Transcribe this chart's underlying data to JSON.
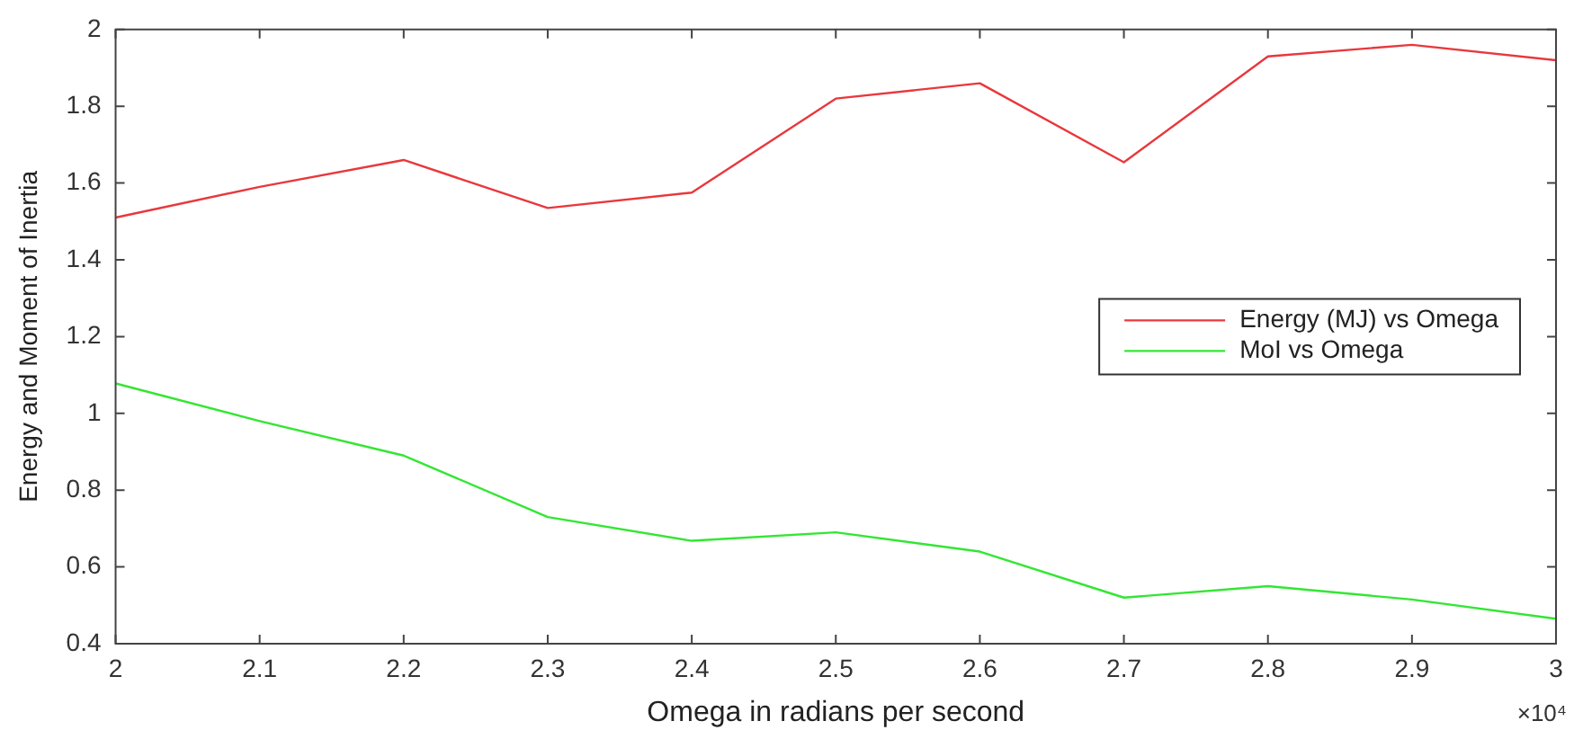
{
  "chart_data": {
    "type": "line",
    "xlabel": "Omega in radians per second",
    "ylabel": "Energy and Moment of Inertia",
    "x": [
      2,
      2.1,
      2.2,
      2.3,
      2.4,
      2.5,
      2.6,
      2.7,
      2.8,
      2.9,
      3
    ],
    "series": [
      {
        "name": "Energy (MJ) vs Omega",
        "color": "#e8383d",
        "values": [
          1.51,
          1.59,
          1.66,
          1.535,
          1.575,
          1.82,
          1.86,
          1.654,
          1.93,
          1.96,
          1.92
        ]
      },
      {
        "name": "MoI vs Omega",
        "color": "#33e633",
        "values": [
          1.078,
          0.98,
          0.89,
          0.73,
          0.668,
          0.69,
          0.64,
          0.52,
          0.55,
          0.515,
          0.465
        ]
      }
    ],
    "xlim": [
      2,
      3
    ],
    "xticks": [
      2,
      2.1,
      2.2,
      2.3,
      2.4,
      2.5,
      2.6,
      2.7,
      2.8,
      2.9,
      3
    ],
    "ylim": [
      0.4,
      2
    ],
    "yticks": [
      0.4,
      0.6,
      0.8,
      1,
      1.2,
      1.4,
      1.6,
      1.8,
      2
    ],
    "annotations": [
      "×10⁴"
    ],
    "grid": false,
    "legend": "right",
    "marker": "none",
    "line_style": "solid"
  }
}
